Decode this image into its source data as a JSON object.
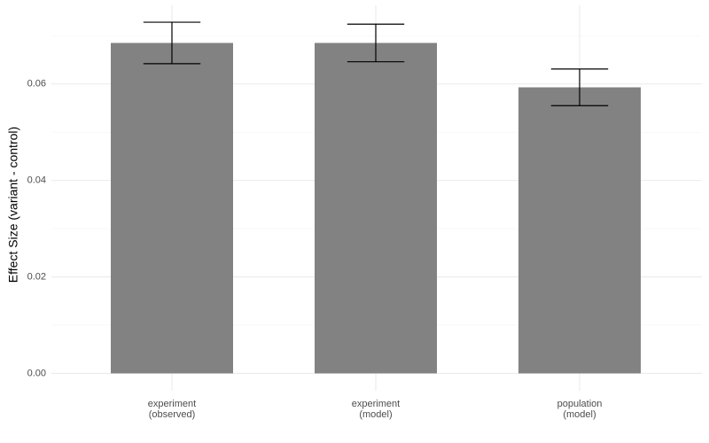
{
  "chart_data": {
    "type": "bar",
    "y_label": "Effect Size (variant - control)",
    "categories": [
      "experiment\n(observed)",
      "experiment\n(model)",
      "population\n(model)"
    ],
    "values": [
      0.0685,
      0.0685,
      0.0593
    ],
    "errors": [
      0.0043,
      0.0039,
      0.0038
    ],
    "color": "#7f7f7f",
    "ylim": [
      -0.0036,
      0.0763
    ],
    "yticks": [
      {
        "value": 0,
        "label": "0.00"
      },
      {
        "value": 0.02,
        "label": "0.02"
      },
      {
        "value": 0.04,
        "label": "0.04"
      },
      {
        "value": 0.06,
        "label": "0.06"
      }
    ],
    "minor_yticks": [
      0.01,
      0.03,
      0.05,
      0.07
    ],
    "grid": true
  }
}
